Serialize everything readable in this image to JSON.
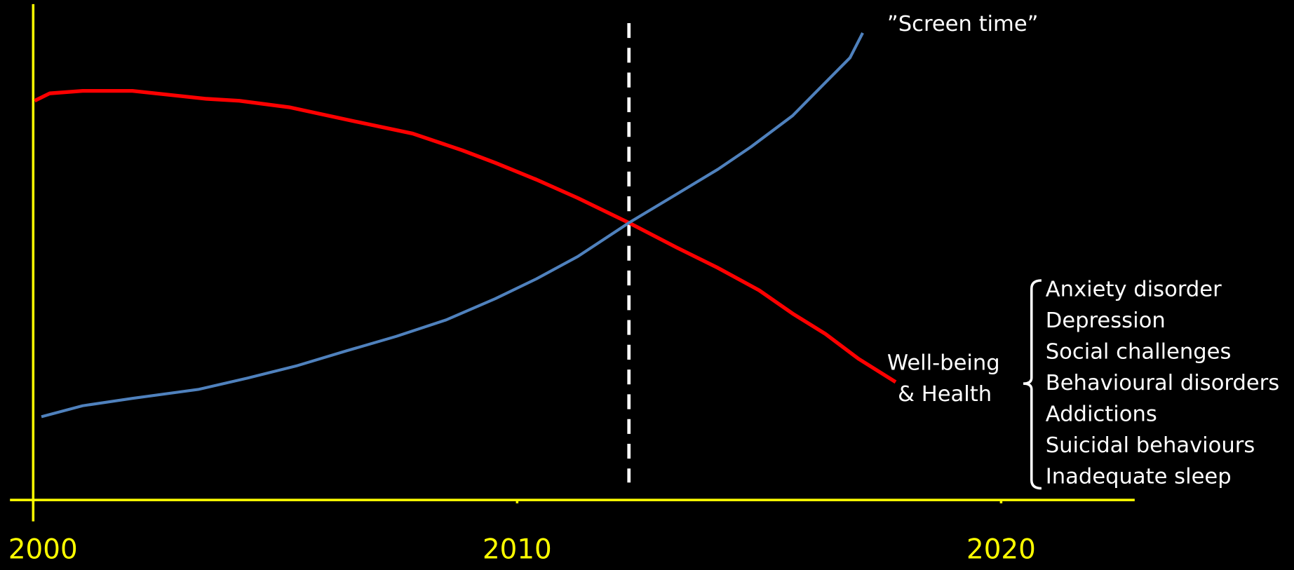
{
  "chart_data": {
    "type": "line",
    "xlim": [
      1999.52,
      2022.76
    ],
    "ylim": [
      -4.3,
      100
    ],
    "xticks": [
      2000,
      2010,
      2020
    ],
    "axis_color": "#ffff00",
    "reference_line": {
      "x": 2012.31,
      "color": "#ffffff"
    },
    "series": [
      {
        "name": [
          "Well-being",
          "& Health"
        ],
        "color": "#ff0000",
        "x": [
          2000.03,
          2000.34,
          2001.02,
          2002.05,
          2003.58,
          2004.26,
          2005.29,
          2006.48,
          2007.84,
          2008.87,
          2009.55,
          2010.4,
          2011.25,
          2012.31,
          2013.3,
          2014.15,
          2015.0,
          2015.69,
          2016.37,
          2017.05,
          2017.82
        ],
        "values": [
          80.5,
          82.0,
          82.5,
          82.5,
          80.9,
          80.5,
          79.2,
          76.7,
          73.9,
          70.5,
          68.0,
          64.6,
          60.9,
          55.9,
          50.9,
          46.8,
          42.3,
          37.6,
          33.5,
          28.5,
          23.8
        ]
      },
      {
        "name": [
          "”Screen time”"
        ],
        "color": "#4f81bd",
        "x": [
          2000.17,
          2001.02,
          2002.05,
          2003.41,
          2004.43,
          2005.46,
          2006.48,
          2007.5,
          2008.53,
          2009.55,
          2010.4,
          2011.25,
          2012.31,
          2013.3,
          2014.15,
          2014.83,
          2015.69,
          2016.37,
          2016.88,
          2017.14
        ],
        "values": [
          16.8,
          19.0,
          20.5,
          22.3,
          24.6,
          27.1,
          30.1,
          33.0,
          36.3,
          40.6,
          44.6,
          49.1,
          55.9,
          61.7,
          66.7,
          71.2,
          77.5,
          84.2,
          89.2,
          94.2
        ]
      }
    ],
    "annotation_list": [
      "Anxiety disorder",
      "Depression",
      "Social challenges",
      "Behavioural disorders",
      "Addictions",
      "Suicidal behaviours",
      "Inadequate sleep"
    ]
  }
}
